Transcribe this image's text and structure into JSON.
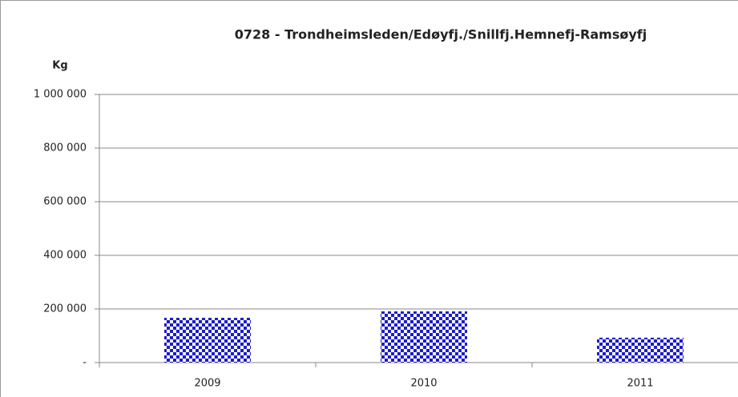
{
  "chart_data": {
    "type": "bar",
    "title": "0728  - Trondheimsleden/Edøyfj./Snillfj.Hemnefj-Ramsøyfj",
    "y_label": "Kg",
    "categories": [
      "2009",
      "2010",
      "2011"
    ],
    "values": [
      167000,
      191000,
      93000
    ],
    "color": "#1c1ccf",
    "ylim": [
      0,
      1000000
    ],
    "yticks": [
      {
        "value": 0,
        "label": "-"
      },
      {
        "value": 200000,
        "label": "200 000"
      },
      {
        "value": 400000,
        "label": "400 000"
      },
      {
        "value": 600000,
        "label": "600 000"
      },
      {
        "value": 800000,
        "label": "800 000"
      },
      {
        "value": 1000000,
        "label": "1 000 000"
      }
    ],
    "grid": true
  }
}
